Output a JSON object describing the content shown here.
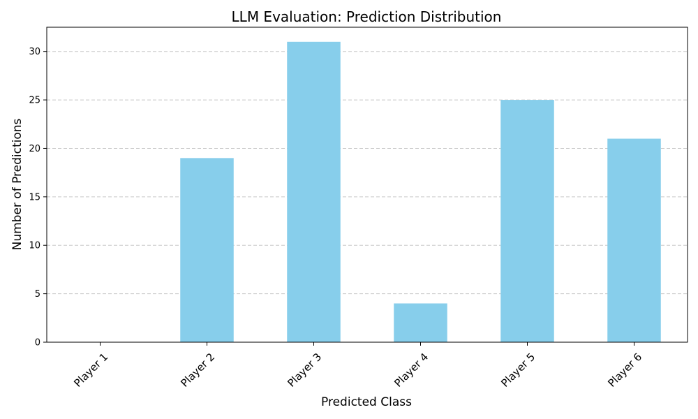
{
  "chart_data": {
    "type": "bar",
    "title": "LLM Evaluation: Prediction Distribution",
    "xlabel": "Predicted Class",
    "ylabel": "Number of Predictions",
    "categories": [
      "Player 1",
      "Player 2",
      "Player 3",
      "Player 4",
      "Player 5",
      "Player 6"
    ],
    "values": [
      0,
      19,
      31,
      4,
      25,
      21
    ],
    "ylim": [
      0,
      32.5
    ],
    "yticks": [
      0,
      5,
      10,
      15,
      20,
      25,
      30
    ],
    "xtick_rotation": 45,
    "grid": "y-dashed",
    "bar_color": "#87ceeb"
  }
}
